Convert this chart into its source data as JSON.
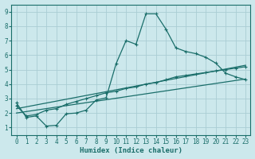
{
  "xlabel": "Humidex (Indice chaleur)",
  "ylabel": "",
  "background_color": "#cce8ec",
  "grid_color": "#aacdd4",
  "line_color": "#1a6e6a",
  "xlim": [
    -0.5,
    23.5
  ],
  "ylim": [
    0.5,
    9.5
  ],
  "xticks": [
    0,
    1,
    2,
    3,
    4,
    5,
    6,
    7,
    8,
    9,
    10,
    11,
    12,
    13,
    14,
    15,
    16,
    17,
    18,
    19,
    20,
    21,
    22,
    23
  ],
  "yticks": [
    1,
    2,
    3,
    4,
    5,
    6,
    7,
    8,
    9
  ],
  "series1_x": [
    0,
    1,
    2,
    3,
    4,
    5,
    6,
    7,
    8,
    9,
    10,
    11,
    12,
    13,
    14,
    15,
    16,
    17,
    18,
    19,
    20,
    21,
    22,
    23
  ],
  "series1_y": [
    2.7,
    1.7,
    1.8,
    1.1,
    1.15,
    1.95,
    2.0,
    2.2,
    2.9,
    3.05,
    5.4,
    7.0,
    6.75,
    8.85,
    8.85,
    7.8,
    6.5,
    6.25,
    6.1,
    5.85,
    5.45,
    4.75,
    4.5,
    4.3
  ],
  "series2_x": [
    0,
    1,
    2,
    3,
    4,
    5,
    6,
    7,
    8,
    9,
    10,
    11,
    12,
    13,
    14,
    15,
    16,
    17,
    18,
    19,
    20,
    21,
    22,
    23
  ],
  "series2_y": [
    2.5,
    1.8,
    1.9,
    2.2,
    2.3,
    2.6,
    2.8,
    3.0,
    3.2,
    3.4,
    3.5,
    3.7,
    3.8,
    4.0,
    4.1,
    4.3,
    4.5,
    4.6,
    4.7,
    4.8,
    4.9,
    5.0,
    5.1,
    5.2
  ],
  "series3_x": [
    0,
    23
  ],
  "series3_y": [
    2.3,
    5.3
  ],
  "series4_x": [
    0,
    23
  ],
  "series4_y": [
    2.0,
    4.35
  ]
}
